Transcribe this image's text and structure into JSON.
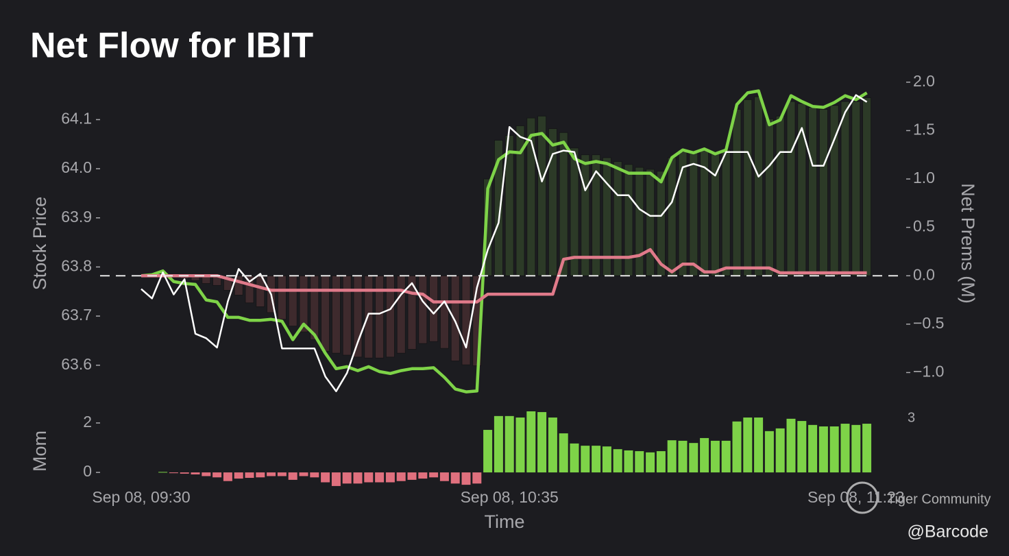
{
  "chart_data": [
    {
      "type": "combo",
      "title": "Net Flow for IBIT",
      "ylabel": "Stock Price",
      "y2label": "Net Prems (M)",
      "ylim": [
        63.52,
        64.19
      ],
      "yticks": [
        63.6,
        63.7,
        63.8,
        63.9,
        {
          "value": 64,
          "label": "64.0"
        },
        64.1
      ],
      "y2lim": [
        -1.33,
        2.07
      ],
      "y2ticks": [
        {
          "value": -1,
          "label": "−1.0"
        },
        {
          "value": -0.5,
          "label": "−0.5"
        },
        {
          "value": 0,
          "label": "0.0"
        },
        0.5,
        {
          "value": 1,
          "label": "1.0"
        },
        1.5,
        {
          "value": 2,
          "label": "2.0"
        }
      ],
      "zero_line": true,
      "series": [
        {
          "type": "bar",
          "axis": "y2",
          "color": "#2c3a27",
          "negative_color": "#3e2a2d",
          "values": [
            0,
            0,
            0.02,
            -0.02,
            -0.03,
            -0.05,
            -0.08,
            -0.1,
            -0.15,
            -0.2,
            -0.28,
            -0.32,
            -0.38,
            -0.45,
            -0.52,
            -0.58,
            -0.66,
            -0.78,
            -0.8,
            -0.82,
            -0.84,
            -0.85,
            -0.85,
            -0.84,
            -0.8,
            -0.76,
            -0.7,
            -0.68,
            -0.75,
            -0.88,
            -0.92,
            -0.93,
            1.0,
            1.4,
            1.45,
            1.55,
            1.63,
            1.65,
            1.52,
            1.48,
            1.32,
            1.25,
            1.25,
            1.22,
            1.18,
            1.15,
            1.12,
            1.1,
            1.08,
            1.22,
            1.28,
            1.28,
            1.3,
            1.28,
            1.3,
            1.72,
            1.82,
            1.85,
            1.62,
            1.65,
            1.8,
            1.78,
            1.74,
            1.72,
            1.76,
            1.8,
            1.8,
            1.84
          ]
        },
        {
          "type": "line",
          "axis": "y2",
          "color": "#7ed348",
          "values": [
            0,
            0.01,
            0.05,
            -0.06,
            -0.08,
            -0.09,
            -0.25,
            -0.27,
            -0.43,
            -0.43,
            -0.46,
            -0.46,
            -0.45,
            -0.47,
            -0.66,
            -0.5,
            -0.61,
            -0.8,
            -0.96,
            -0.94,
            -0.98,
            -0.94,
            -0.99,
            -1.01,
            -0.98,
            -0.96,
            -0.96,
            -0.95,
            -1.05,
            -1.17,
            -1.2,
            -1.19,
            0.9,
            1.2,
            1.28,
            1.27,
            1.45,
            1.47,
            1.35,
            1.38,
            1.21,
            1.16,
            1.18,
            1.16,
            1.11,
            1.06,
            1.06,
            1.06,
            0.97,
            1.22,
            1.3,
            1.27,
            1.31,
            1.26,
            1.3,
            1.77,
            1.89,
            1.91,
            1.56,
            1.61,
            1.86,
            1.8,
            1.75,
            1.74,
            1.79,
            1.86,
            1.82,
            1.89
          ]
        },
        {
          "type": "line",
          "axis": "y2",
          "color": "#e07a8a",
          "values": [
            0,
            0,
            0,
            0,
            0,
            0,
            0,
            0,
            -0.03,
            -0.06,
            -0.09,
            -0.12,
            -0.15,
            -0.15,
            -0.15,
            -0.15,
            -0.15,
            -0.15,
            -0.15,
            -0.15,
            -0.15,
            -0.15,
            -0.15,
            -0.15,
            -0.15,
            -0.18,
            -0.19,
            -0.27,
            -0.27,
            -0.27,
            -0.27,
            -0.27,
            -0.19,
            -0.19,
            -0.19,
            -0.19,
            -0.19,
            -0.19,
            -0.19,
            0.17,
            0.19,
            0.19,
            0.19,
            0.19,
            0.19,
            0.19,
            0.21,
            0.27,
            0.12,
            0.04,
            0.12,
            0.12,
            0.04,
            0.04,
            0.08,
            0.08,
            0.08,
            0.08,
            0.08,
            0.03,
            0.03,
            0.03,
            0.03,
            0.03,
            0.03,
            0.03,
            0.03,
            0.03
          ]
        },
        {
          "type": "line",
          "axis": "y",
          "color": "#ffffff",
          "values": [
            63.755,
            63.736,
            63.789,
            63.744,
            63.775,
            63.664,
            63.655,
            63.636,
            63.73,
            63.796,
            63.77,
            63.786,
            63.744,
            63.634,
            63.634,
            63.634,
            63.634,
            63.577,
            63.547,
            63.584,
            63.647,
            63.705,
            63.705,
            63.714,
            63.744,
            63.767,
            63.73,
            63.705,
            63.73,
            63.689,
            63.636,
            63.758,
            63.835,
            63.89,
            64.085,
            64.065,
            64.057,
            63.974,
            64.03,
            64.037,
            64.034,
            63.956,
            63.995,
            63.97,
            63.946,
            63.946,
            63.918,
            63.904,
            63.904,
            63.932,
            64.003,
            64.01,
            64.003,
            63.986,
            64.034,
            64.034,
            64.034,
            63.984,
            64.006,
            64.034,
            64.034,
            64.083,
            64.006,
            64.006,
            64.06,
            64.115,
            64.15,
            64.136
          ]
        }
      ]
    },
    {
      "type": "bar",
      "ylabel": "Mom",
      "xlabel": "Time",
      "ylim": [
        -0.58,
        2.47
      ],
      "yticks": [
        0,
        2
      ],
      "y2lim": [
        -0.6,
        3.36
      ],
      "y2ticks": [
        3
      ],
      "color": "#7ed348",
      "negative_color": "#e0707e",
      "categories": [
        "Sep 08, 09:30",
        null,
        null,
        null,
        null,
        null,
        null,
        null,
        null,
        null,
        null,
        null,
        null,
        null,
        null,
        null,
        null,
        null,
        null,
        null,
        null,
        null,
        null,
        null,
        null,
        null,
        null,
        null,
        null,
        null,
        null,
        null,
        null,
        null,
        "Sep 08, 10:35",
        null,
        null,
        null,
        null,
        null,
        null,
        null,
        null,
        null,
        null,
        null,
        null,
        null,
        null,
        null,
        null,
        null,
        null,
        null,
        null,
        null,
        null,
        null,
        null,
        null,
        null,
        null,
        null,
        null,
        null,
        null,
        "Sep 08, 11:23",
        null
      ],
      "values": [
        null,
        null,
        0.02,
        -0.03,
        -0.05,
        -0.08,
        -0.15,
        -0.2,
        -0.35,
        -0.25,
        -0.22,
        -0.2,
        -0.15,
        -0.15,
        -0.3,
        -0.15,
        -0.2,
        -0.4,
        -0.55,
        -0.45,
        -0.45,
        -0.4,
        -0.4,
        -0.4,
        -0.35,
        -0.3,
        -0.25,
        -0.2,
        -0.35,
        -0.45,
        -0.5,
        -0.45,
        1.72,
        2.28,
        2.28,
        2.22,
        2.47,
        2.44,
        2.22,
        1.58,
        1.17,
        1.08,
        1.08,
        1.05,
        0.94,
        0.89,
        0.86,
        0.81,
        0.86,
        1.3,
        1.28,
        1.19,
        1.39,
        1.28,
        1.28,
        2.06,
        2.22,
        2.22,
        1.67,
        1.78,
        2.17,
        2.08,
        1.92,
        1.86,
        1.86,
        1.97,
        1.92,
        1.97
      ]
    }
  ],
  "watermark": "Tiger Community",
  "credit": "@Barcode"
}
